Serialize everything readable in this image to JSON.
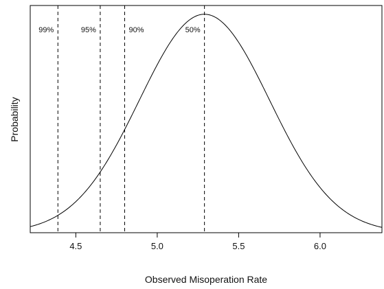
{
  "chart_data": {
    "type": "line",
    "title": "",
    "xlabel": "Observed Misoperation Rate",
    "ylabel": "Probability",
    "xlim": [
      4.22,
      6.38
    ],
    "ylim": [
      0,
      1.04
    ],
    "x_ticks": [
      4.5,
      5.0,
      5.5,
      6.0
    ],
    "x_tick_labels": [
      "4.5",
      "5.0",
      "5.5",
      "6.0"
    ],
    "y_ticks_shown": false,
    "grid": false,
    "legend": "none",
    "curve": {
      "description": "normal density",
      "mean": 5.29,
      "sd": 0.4,
      "peak": 1.0,
      "color": "#000000"
    },
    "reference_lines": [
      {
        "x": 4.39,
        "label": "99%"
      },
      {
        "x": 4.65,
        "label": "95%"
      },
      {
        "x": 4.8,
        "label": "90%"
      },
      {
        "x": 5.29,
        "label": "50%"
      }
    ]
  }
}
